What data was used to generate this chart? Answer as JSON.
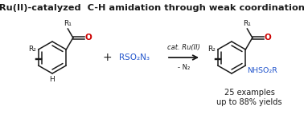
{
  "title": "Ru(II)-catalyzed  C-H amidation through weak coordination",
  "title_fontsize": 8.2,
  "bg_color": "#ffffff",
  "black": "#1a1a1a",
  "red": "#cc0000",
  "blue": "#2255cc",
  "arrow_above": "cat. Ru(II)",
  "arrow_below": "- N₂",
  "reagent": "RSO₂N₃",
  "product_bottom": "NHSO₂R",
  "examples": "25 examples",
  "yields": "up to 88% yields",
  "R1": "R₁",
  "R2": "R₂",
  "plus": "+",
  "O_label": "O",
  "H_label": "H"
}
